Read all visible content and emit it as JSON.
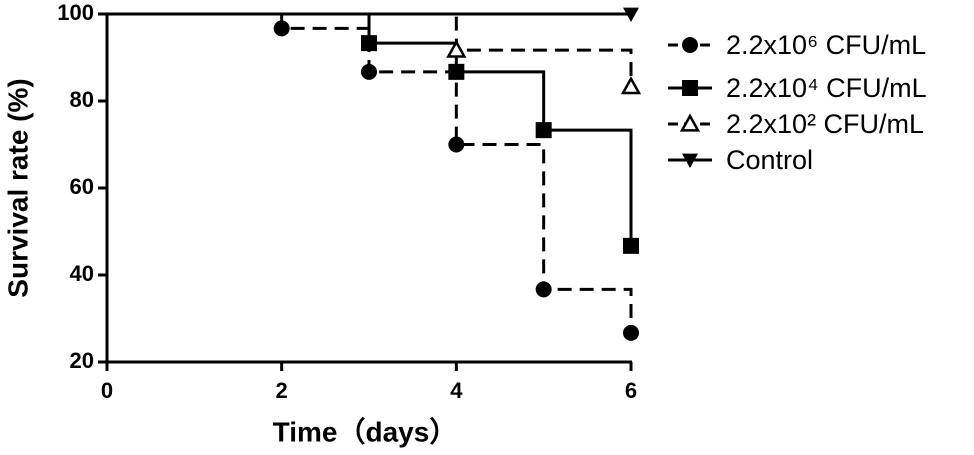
{
  "chart_data": {
    "type": "survival-step",
    "xlabel": "Time（days）",
    "ylabel": "Survival rate (%)",
    "xlim": [
      0,
      6
    ],
    "xticks": [
      0,
      2,
      4,
      6
    ],
    "ylim": [
      20,
      100
    ],
    "yticks": [
      20,
      40,
      60,
      80,
      100
    ],
    "series": [
      {
        "name": "2.2x10⁶ CFU/mL",
        "color": "#000000",
        "line": "dashed",
        "marker": "circle",
        "x": [
          0,
          2,
          3,
          4,
          5,
          6
        ],
        "values": [
          100,
          96.7,
          86.7,
          70,
          36.7,
          26.7
        ]
      },
      {
        "name": "2.2x10⁴ CFU/mL",
        "color": "#000000",
        "line": "solid",
        "marker": "square",
        "x": [
          0,
          3,
          4,
          5,
          6
        ],
        "values": [
          100,
          93.3,
          86.7,
          73.3,
          46.7
        ]
      },
      {
        "name": "2.2x10² CFU/mL",
        "color": "#000000",
        "line": "dashed",
        "marker": "open-triangle",
        "x": [
          0,
          4,
          6
        ],
        "values": [
          100,
          91.7,
          83.3
        ]
      },
      {
        "name": "Control",
        "color": "#000000",
        "line": "solid",
        "marker": "down-triangle",
        "x": [
          0,
          6
        ],
        "values": [
          100,
          100
        ]
      }
    ]
  }
}
